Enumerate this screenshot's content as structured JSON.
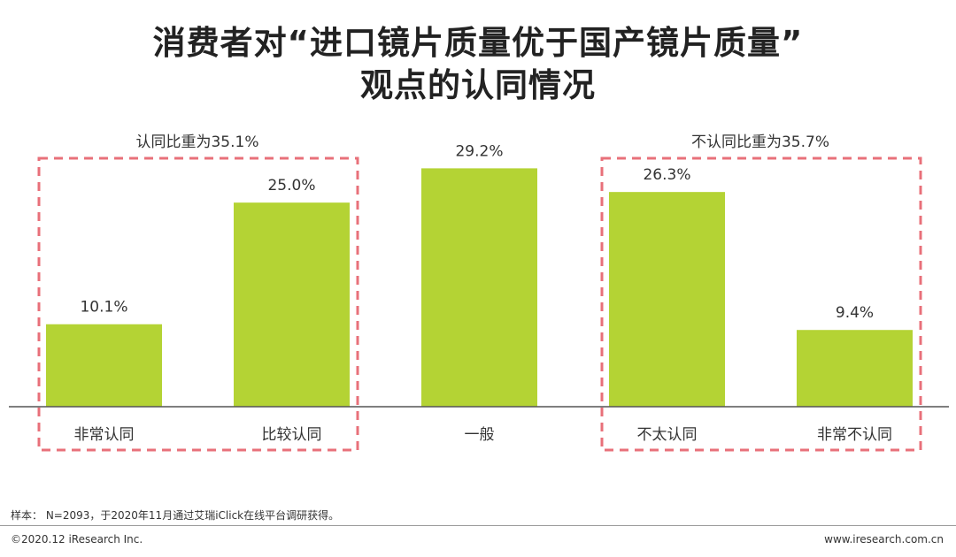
{
  "title_line1": "消费者对“进口镜片质量优于国产镜片质量”",
  "title_line2": "观点的认同情况",
  "chart_data": {
    "type": "bar",
    "categories": [
      "非常认同",
      "比较认同",
      "一般",
      "不太认同",
      "非常不认同"
    ],
    "values": [
      10.1,
      25.0,
      29.2,
      26.3,
      9.4
    ],
    "value_labels": [
      "10.1%",
      "25.0%",
      "29.2%",
      "26.3%",
      "9.4%"
    ],
    "unit": "%",
    "ylim": [
      0,
      30
    ],
    "grid": false,
    "bar_color": "#b4d334",
    "groups": [
      {
        "label": "认同比重为35.1%",
        "members": [
          0,
          1
        ],
        "box_color": "#e8707a"
      },
      {
        "label": "不认同比重为35.7%",
        "members": [
          3,
          4
        ],
        "box_color": "#e8707a"
      }
    ]
  },
  "note": "样本： N=2093，于2020年11月通过艾瑞iClick在线平台调研获得。",
  "copyright": "©2020.12 iResearch Inc.",
  "website": "www.iresearch.com.cn"
}
